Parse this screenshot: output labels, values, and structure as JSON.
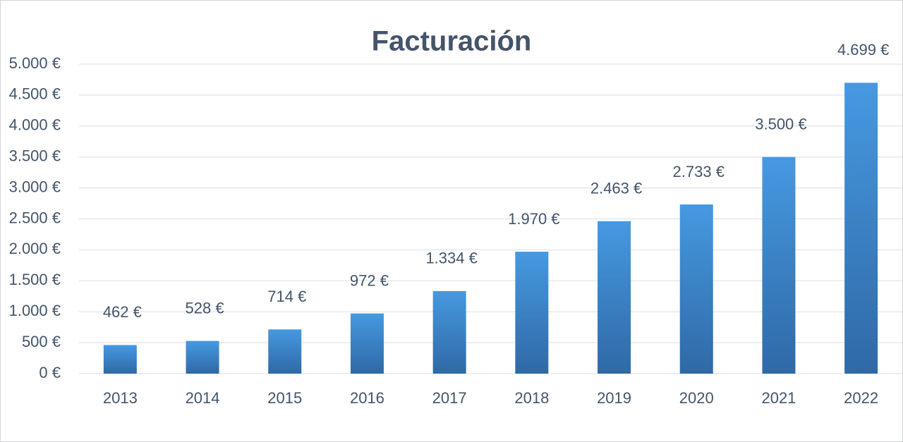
{
  "chart_data": {
    "type": "bar",
    "title": "Facturación",
    "categories": [
      "2013",
      "2014",
      "2015",
      "2016",
      "2017",
      "2018",
      "2019",
      "2020",
      "2021",
      "2022"
    ],
    "values": [
      462,
      528,
      714,
      972,
      1334,
      1970,
      2463,
      2733,
      3500,
      4699
    ],
    "value_labels": [
      "462 €",
      "528 €",
      "714 €",
      "972 €",
      "1.334 €",
      "1.970 €",
      "2.463 €",
      "2.733 €",
      "3.500 €",
      "4.699 €"
    ],
    "color": "#3f8fd8",
    "ylim": [
      0,
      5000
    ],
    "yticks": [
      {
        "value": 0,
        "label": "0 €"
      },
      {
        "value": 500,
        "label": "500 €"
      },
      {
        "value": 1000,
        "label": "1.000 €"
      },
      {
        "value": 1500,
        "label": "1.500 €"
      },
      {
        "value": 2000,
        "label": "2.000 €"
      },
      {
        "value": 2500,
        "label": "2.500 €"
      },
      {
        "value": 3000,
        "label": "3.000 €"
      },
      {
        "value": 3500,
        "label": "3.500 €"
      },
      {
        "value": 4000,
        "label": "4.000 €"
      },
      {
        "value": 4500,
        "label": "4.500 €"
      },
      {
        "value": 5000,
        "label": "5.000 €"
      }
    ],
    "grid": true
  }
}
